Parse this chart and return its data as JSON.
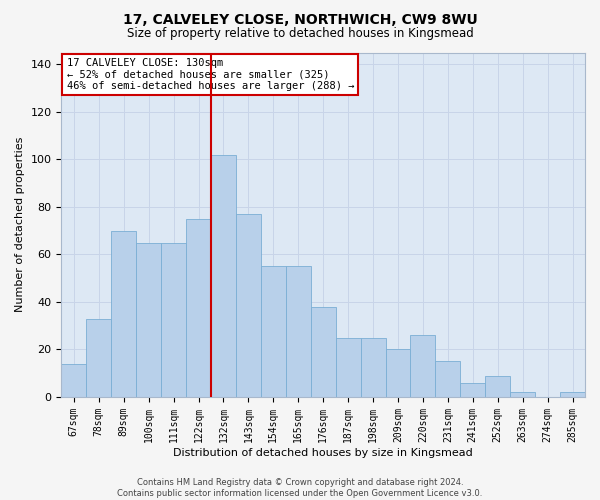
{
  "title1": "17, CALVELEY CLOSE, NORTHWICH, CW9 8WU",
  "title2": "Size of property relative to detached houses in Kingsmead",
  "xlabel": "Distribution of detached houses by size in Kingsmead",
  "ylabel": "Number of detached properties",
  "categories": [
    "67sqm",
    "78sqm",
    "89sqm",
    "100sqm",
    "111sqm",
    "122sqm",
    "132sqm",
    "143sqm",
    "154sqm",
    "165sqm",
    "176sqm",
    "187sqm",
    "198sqm",
    "209sqm",
    "220sqm",
    "231sqm",
    "241sqm",
    "252sqm",
    "263sqm",
    "274sqm",
    "285sqm"
  ],
  "values": [
    14,
    33,
    70,
    65,
    65,
    75,
    102,
    77,
    55,
    55,
    38,
    25,
    25,
    20,
    26,
    15,
    6,
    9,
    2,
    0,
    2
  ],
  "bar_color": "#b8d0ea",
  "bar_edge_color": "#7aaed4",
  "vline_x": 6,
  "vline_color": "#cc0000",
  "annotation_title": "17 CALVELEY CLOSE: 130sqm",
  "annotation_line1": "← 52% of detached houses are smaller (325)",
  "annotation_line2": "46% of semi-detached houses are larger (288) →",
  "annotation_box_edge": "#cc0000",
  "ylim": [
    0,
    145
  ],
  "yticks": [
    0,
    20,
    40,
    60,
    80,
    100,
    120,
    140
  ],
  "grid_color": "#c8d4e8",
  "bg_color": "#dde8f4",
  "fig_bg_color": "#f5f5f5",
  "footer": "Contains HM Land Registry data © Crown copyright and database right 2024.\nContains public sector information licensed under the Open Government Licence v3.0."
}
